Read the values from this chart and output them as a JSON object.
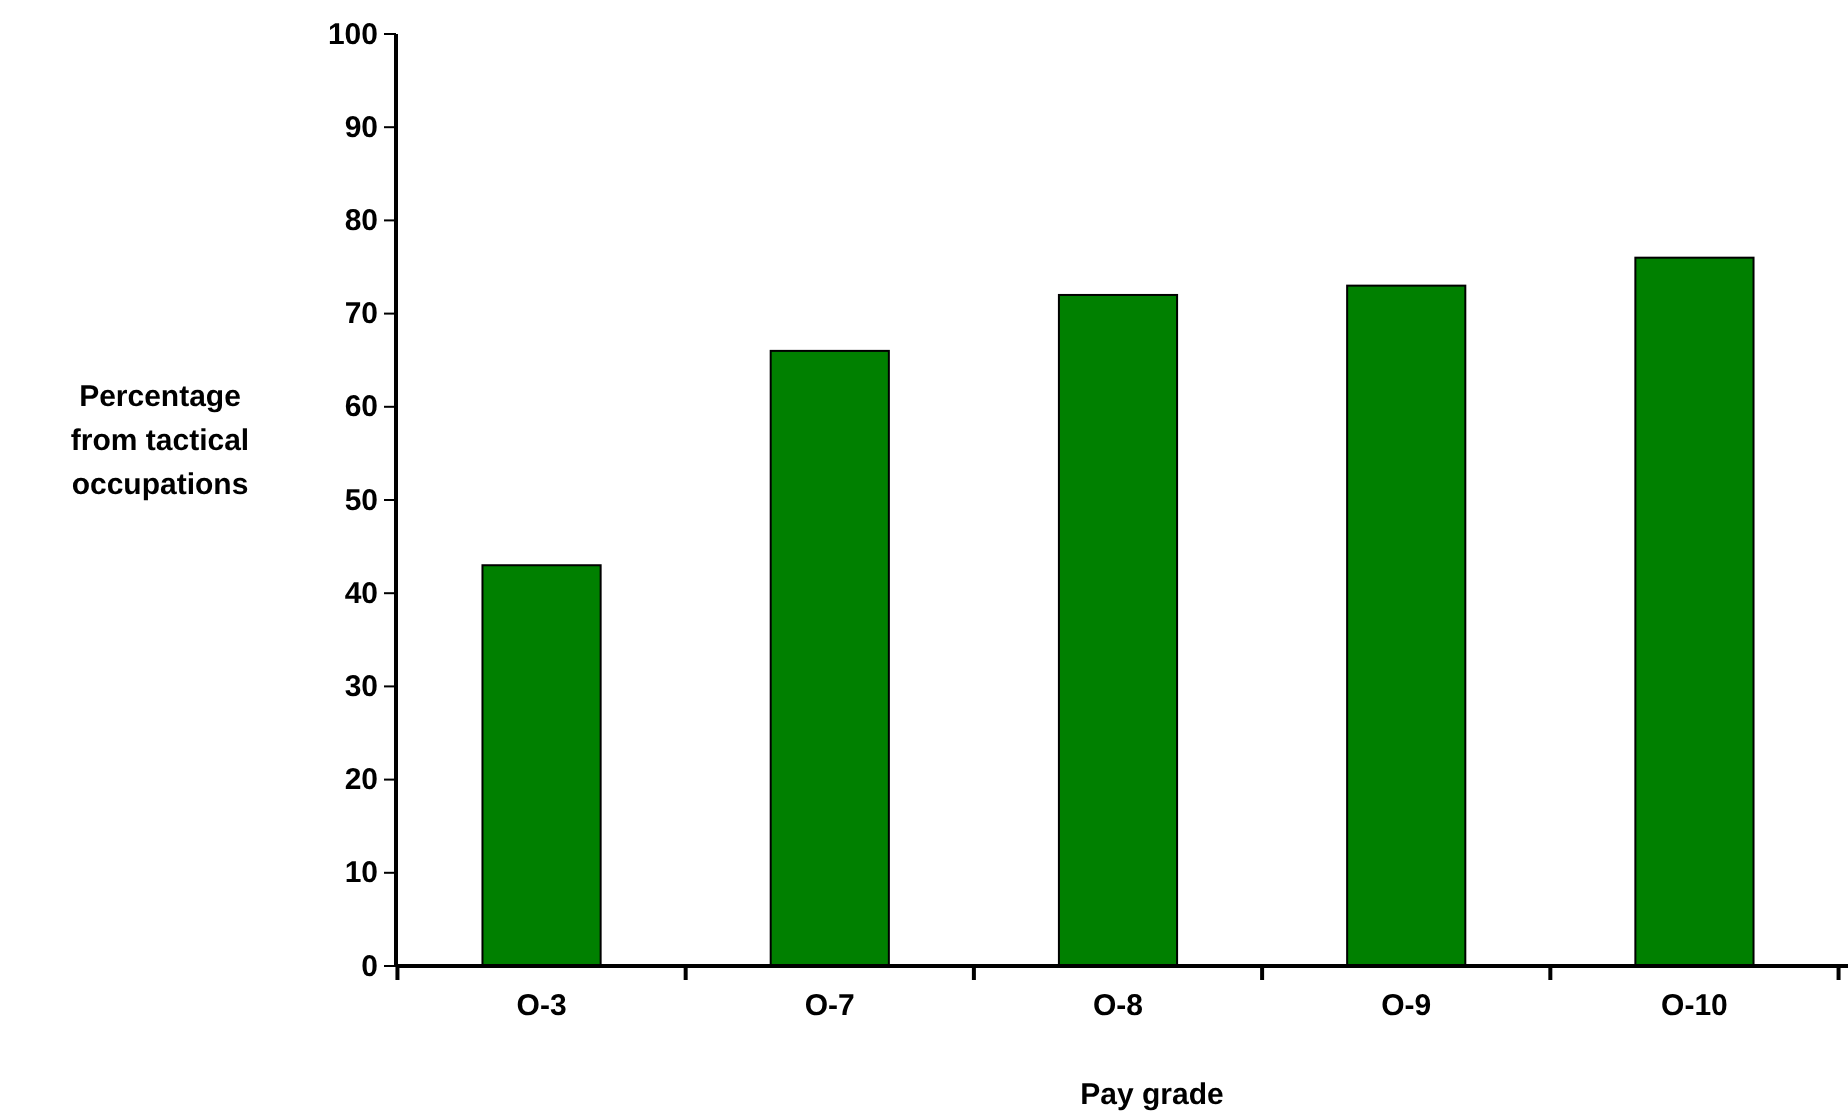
{
  "chart_data": {
    "type": "bar",
    "xlabel": "Pay grade",
    "ylabel": "Percentage from tactical occupations",
    "categories": [
      "O-3",
      "O-7",
      "O-8",
      "O-9",
      "O-10"
    ],
    "values": [
      43,
      66,
      72,
      73,
      76
    ],
    "color": "#008000",
    "ylim": [
      0,
      100
    ],
    "yticks": [
      0,
      10,
      20,
      30,
      40,
      50,
      60,
      70,
      80,
      90,
      100
    ],
    "grid": false
  }
}
